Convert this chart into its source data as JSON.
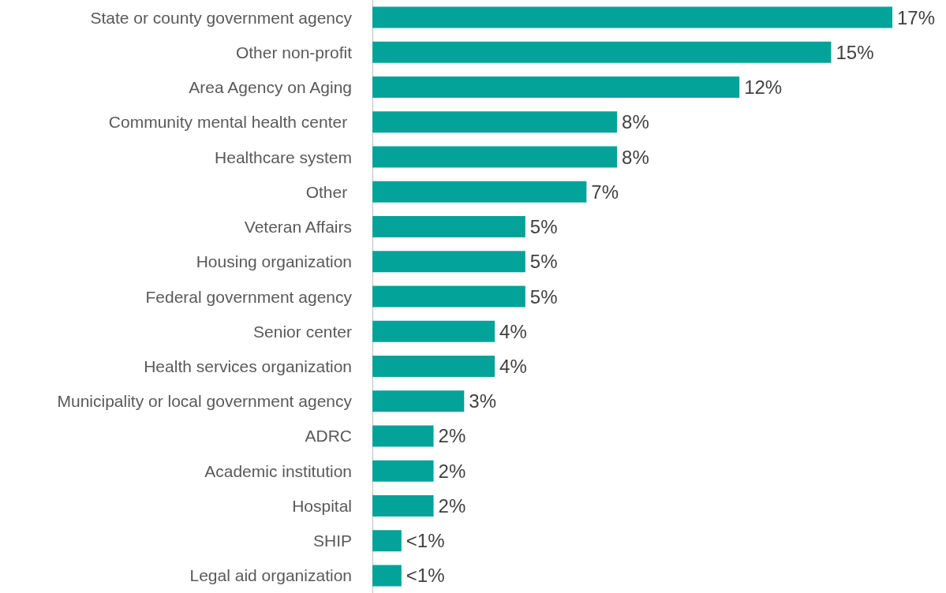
{
  "chart_data": {
    "type": "bar",
    "orientation": "horizontal",
    "categories": [
      "State or county government agency",
      "Other non-profit",
      "Area Agency on Aging",
      "Community mental health center ",
      "Healthcare system",
      "Other ",
      "Veteran Affairs",
      "Housing organization",
      "Federal government agency",
      "Senior center",
      "Health services organization",
      "Municipality or local government agency",
      "ADRC",
      "Academic institution",
      "Hospital",
      "SHIP",
      "Legal aid organization"
    ],
    "values": [
      17,
      15,
      12,
      8,
      8,
      7,
      5,
      5,
      5,
      4,
      4,
      3,
      2,
      2,
      2,
      0.95,
      0.95
    ],
    "value_labels": [
      "17%",
      "15%",
      "12%",
      "8%",
      "8%",
      "7%",
      "5%",
      "5%",
      "5%",
      "4%",
      "4%",
      "3%",
      "2%",
      "2%",
      "2%",
      "<1%",
      "<1%"
    ],
    "color": "#04a39a"
  }
}
